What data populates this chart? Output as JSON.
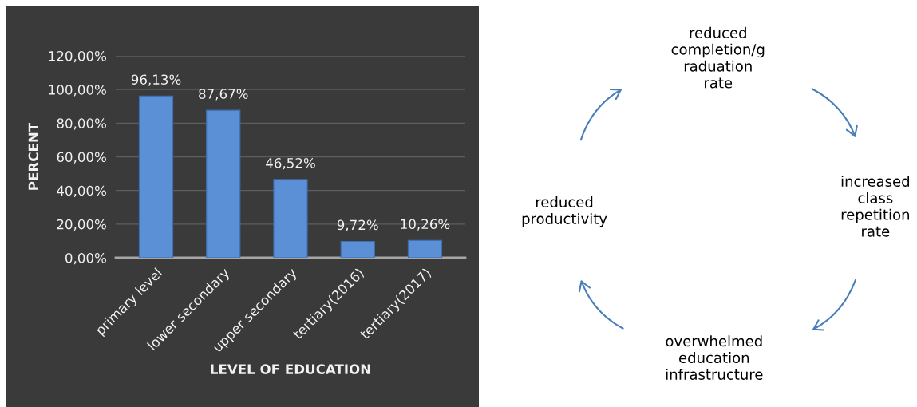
{
  "chart_data": [
    {
      "type": "bar",
      "xlabel": "LEVEL OF EDUCATION",
      "ylabel": "PERCENT",
      "categories": [
        "primary level",
        "lower secondary",
        "upper secondary",
        "tertiary(2016)",
        "tertiary(2017)"
      ],
      "values": [
        96.13,
        87.67,
        46.52,
        9.72,
        10.26
      ],
      "color": "#5b8fd6",
      "value_labels": [
        "96,13%",
        "87,67%",
        "46,52%",
        "9,72%",
        "10,26%"
      ],
      "ylim": [
        0,
        120
      ],
      "yticks": [
        {
          "value": 0,
          "label": "0,00%"
        },
        {
          "value": 20,
          "label": "20,00%"
        },
        {
          "value": 40,
          "label": "40,00%"
        },
        {
          "value": 60,
          "label": "60,00%"
        },
        {
          "value": 80,
          "label": "80,00%"
        },
        {
          "value": 100,
          "label": "100,00%"
        },
        {
          "value": 120,
          "label": "120,00%"
        }
      ],
      "grid": "y"
    },
    {
      "type": "other",
      "annotations": [
        "reduced\ncompletion/g\nraduation\nrate",
        "increased\nclass\nrepetition\nrate",
        "overwhelmed\neducation\ninfrastructure",
        "reduced\nproductivity"
      ]
    }
  ]
}
